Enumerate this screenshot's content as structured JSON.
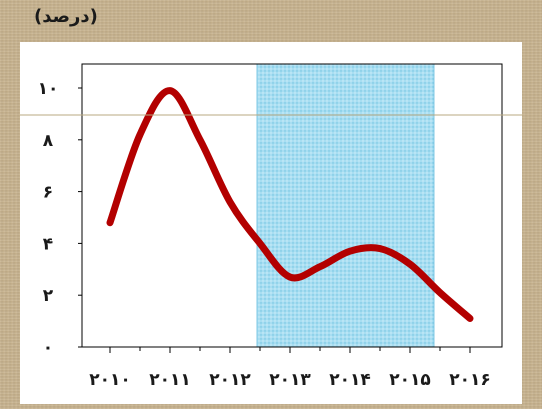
{
  "chart_data": {
    "type": "line",
    "title": "",
    "unit_label": "(درصد)",
    "x": [
      2010,
      2010.5,
      2011,
      2011.5,
      2012,
      2012.5,
      2013,
      2013.5,
      2014,
      2014.5,
      2015,
      2015.5,
      2016
    ],
    "x_tick_labels": [
      "۲۰۱۰",
      "۲۰۱۱",
      "۲۰۱۲",
      "۲۰۱۳",
      "۲۰۱۴",
      "۲۰۱۵",
      "۲۰۱۶"
    ],
    "y_tick_labels": [
      "۰",
      "۲",
      "۴",
      "۶",
      "۸",
      "۱۰"
    ],
    "series": [
      {
        "values": [
          4.8,
          8.2,
          9.9,
          8.0,
          5.6,
          4.0,
          2.7,
          3.1,
          3.7,
          3.8,
          3.2,
          2.1,
          1.1
        ],
        "color": "#b30000"
      }
    ],
    "shaded_region": {
      "x_start": 2012.45,
      "x_end": 2015.4,
      "color": "#9fdcf0"
    },
    "ylim": [
      0,
      10
    ],
    "xlim": [
      2010,
      2016
    ],
    "grid": false,
    "legend": "none"
  }
}
